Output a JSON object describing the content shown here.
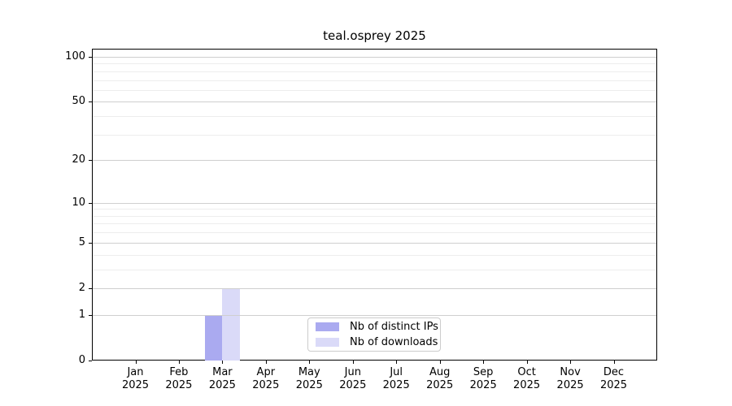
{
  "chart_data": {
    "type": "bar",
    "title": "teal.osprey 2025",
    "x_tick_months": [
      "Jan",
      "Feb",
      "Mar",
      "Apr",
      "May",
      "Jun",
      "Jul",
      "Aug",
      "Sep",
      "Oct",
      "Nov",
      "Dec"
    ],
    "x_tick_year": "2025",
    "yticks": [
      0,
      1,
      2,
      5,
      10,
      20,
      50,
      100
    ],
    "minor_gridlines": [
      3,
      4,
      6,
      7,
      8,
      9,
      30,
      40,
      60,
      70,
      80,
      90
    ],
    "scale": "log10(value+1)",
    "ylim": [
      0,
      110
    ],
    "grid": "on",
    "legend_position": "lower center",
    "series": [
      {
        "name": "Nb of distinct IPs",
        "color": "#aaaaf0",
        "values": [
          0,
          0,
          1,
          0,
          0,
          0,
          0,
          0,
          0,
          0,
          0,
          0
        ]
      },
      {
        "name": "Nb of downloads",
        "color": "#dadaf8",
        "values": [
          0,
          0,
          2,
          0,
          0,
          0,
          0,
          0,
          0,
          0,
          0,
          0
        ]
      }
    ],
    "colors": {
      "major_grid": "#cfcfcf",
      "minor_grid": "#ededed",
      "spine": "#000000",
      "legend_border": "#cccccc"
    }
  }
}
